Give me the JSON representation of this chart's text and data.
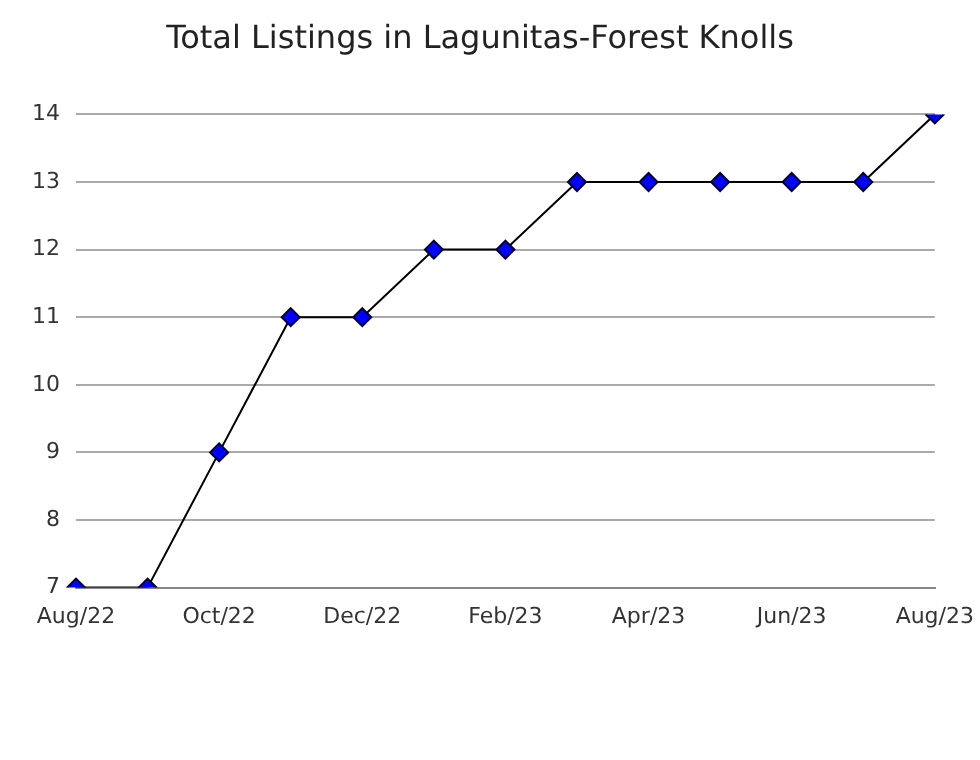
{
  "chart_data": {
    "type": "line",
    "title": "Total Listings in Lagunitas-Forest Knolls",
    "categories": [
      "Aug/22",
      null,
      "Oct/22",
      null,
      "Dec/22",
      null,
      "Feb/23",
      null,
      "Apr/23",
      null,
      "Jun/23",
      null,
      "Aug/23"
    ],
    "series": [
      {
        "color": "#0000ff",
        "values": [
          7,
          7,
          9,
          11,
          11,
          12,
          12,
          13,
          13,
          13,
          13,
          13,
          14
        ]
      }
    ],
    "ylim": [
      7,
      14
    ],
    "yticks": [
      7,
      8,
      9,
      10,
      11,
      12,
      13,
      14
    ],
    "grid": "y",
    "legend": false,
    "marker": "diamond",
    "line_style": "solid"
  }
}
